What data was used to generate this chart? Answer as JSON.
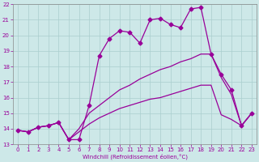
{
  "xlabel": "Windchill (Refroidissement éolien,°C)",
  "ylabel": "",
  "xlim": [
    -0.5,
    23.5
  ],
  "ylim": [
    13,
    22
  ],
  "yticks": [
    13,
    14,
    15,
    16,
    17,
    18,
    19,
    20,
    21,
    22
  ],
  "xticks": [
    0,
    1,
    2,
    3,
    4,
    5,
    6,
    7,
    8,
    9,
    10,
    11,
    12,
    13,
    14,
    15,
    16,
    17,
    18,
    19,
    20,
    21,
    22,
    23
  ],
  "bg_color": "#cde8e8",
  "grid_color": "#aacece",
  "line_color": "#990099",
  "line1_x": [
    0,
    1,
    2,
    3,
    4,
    5,
    6,
    7,
    8,
    9,
    10,
    11,
    12,
    13,
    14,
    15,
    16,
    17,
    18,
    19,
    20,
    21,
    22,
    23
  ],
  "line1_y": [
    13.9,
    13.8,
    14.1,
    14.2,
    14.4,
    13.3,
    13.3,
    15.5,
    18.7,
    19.8,
    20.3,
    20.2,
    19.5,
    21.0,
    21.1,
    20.7,
    20.5,
    21.7,
    21.8,
    18.8,
    17.5,
    16.5,
    14.2,
    15.0
  ],
  "line2_x": [
    0,
    1,
    2,
    3,
    4,
    5,
    6,
    7,
    8,
    9,
    10,
    11,
    12,
    13,
    14,
    15,
    16,
    17,
    18,
    19,
    20,
    21,
    22,
    23
  ],
  "line2_y": [
    13.9,
    13.8,
    14.1,
    14.2,
    14.4,
    13.3,
    14.0,
    15.0,
    15.5,
    16.0,
    16.5,
    16.8,
    17.2,
    17.5,
    17.8,
    18.0,
    18.3,
    18.5,
    18.8,
    18.8,
    17.3,
    16.2,
    14.2,
    15.0
  ],
  "line3_x": [
    0,
    1,
    2,
    3,
    4,
    5,
    6,
    7,
    8,
    9,
    10,
    11,
    12,
    13,
    14,
    15,
    16,
    17,
    18,
    19,
    20,
    21,
    22,
    23
  ],
  "line3_y": [
    13.9,
    13.8,
    14.1,
    14.2,
    14.4,
    13.3,
    13.8,
    14.3,
    14.7,
    15.0,
    15.3,
    15.5,
    15.7,
    15.9,
    16.0,
    16.2,
    16.4,
    16.6,
    16.8,
    16.8,
    14.9,
    14.6,
    14.2,
    15.0
  ],
  "marker": "D",
  "markersize": 2.5,
  "linewidth": 0.9
}
